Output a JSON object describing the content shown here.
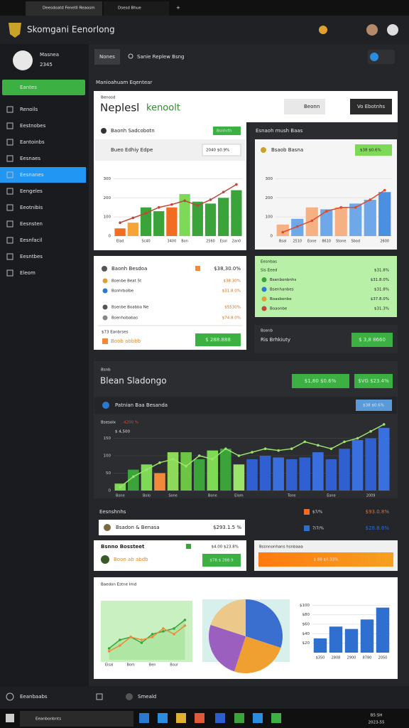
{
  "browser": {
    "tabs": [
      "Deesdoatd Fenetll Reaosm",
      "Dsesd Bhue"
    ]
  },
  "header": {
    "title": "Skomgani Eenorlong"
  },
  "sidebar": {
    "user_name": "Masnea",
    "user_id": "2345",
    "primary": "Eantes",
    "items": [
      "Renoils",
      "Eestnobes",
      "Eantoinbs",
      "Eesnaes",
      "Eesnanes",
      "Eengeles",
      "Eeotnibis",
      "Eesnsten",
      "Eesnfacil",
      "Eesntbes",
      "Eleom"
    ],
    "footer": "Eeanbaabs"
  },
  "toolbar": {
    "button": "Nones",
    "search": "Sanie Replew Bsng"
  },
  "section_title": "Manioahuam Eqentear",
  "report": {
    "label": "Benosd",
    "title": "Neplesl",
    "accent": "kenoolt",
    "buttons": [
      "Beonn",
      "Vo Ebotnhs"
    ]
  },
  "card_a": {
    "title": "Baonh Sadcobotn",
    "button": "Bsnhrth",
    "subtitle": "Bueo Edhiy Edpe",
    "badge": "2040 $0.9%"
  },
  "panel_b": {
    "header": "Esnaoh mush Baas",
    "title": "Bsaob Basna",
    "button": "$38 $0.6%"
  },
  "card_list": {
    "header_label": "Baonh Besdoa",
    "header_value": "$38,30.0%",
    "rows": [
      {
        "label": "Bsenbe Beat 5t",
        "value": "$38.30%"
      },
      {
        "label": "Bsnhrbolbe",
        "value": "$31.8.0%"
      },
      {
        "label": "Bsenbe Boabba Ne",
        "value": "$5530%"
      },
      {
        "label": "Bsenhobabas",
        "value": "$74.8.0%"
      }
    ],
    "footer_label": "$73 Eanbrses",
    "footer_sub": "Boob abbbb",
    "button": "$ 288.888"
  },
  "card_green": {
    "header": "Eesnbas",
    "rows": [
      {
        "label": "Sis Eeed",
        "value": "$31.8%"
      },
      {
        "label": "Bsenbonbnhs",
        "value": "$31.8.0%"
      },
      {
        "label": "Bsenhanbes",
        "value": "$31.8%"
      },
      {
        "label": "Boasbonbe",
        "value": "$37.8.0%"
      },
      {
        "label": "Boaonbe",
        "value": "$31.3%"
      }
    ]
  },
  "card_dark": {
    "label": "Bsenb",
    "title": "Ris Brhkiuty",
    "button": "$ 3,8 8660"
  },
  "panel_c": {
    "label": "Bsnb",
    "title": "Blean Sladongo",
    "buttons": [
      "$1,80 $0.6%",
      "$VG $23.4%"
    ],
    "subtitle": "Patnian Baa Besanda",
    "sub_button": "$38 $0.6%",
    "note": "Bsesolx",
    "note_accent": "4200 %",
    "note_value": "$ 4,500"
  },
  "legend": {
    "title": "Eesnshnhs",
    "rows": [
      {
        "color": "#f06d22",
        "label": "$7/%",
        "value": "$93.0.8%"
      },
      {
        "color": "#2f6fd0",
        "label": "7/7/%",
        "value": "$28.8.8%"
      }
    ]
  },
  "summary": {
    "label": "Bsadon & Benasa",
    "value": "$293.1.5 %"
  },
  "card_bottom": {
    "title": "Bsnno Bossteet",
    "value": "$4.00 $23.8%",
    "sub": "Boon ab abdb",
    "button": "$78.$ 288.9"
  },
  "card_orange": {
    "label": "Bssnnonhans hsnbaaa",
    "bar": "$ 88 $0.33%"
  },
  "panel_d": {
    "title": "Baedon Estne Imd"
  },
  "footer": {
    "label": "Smeald"
  },
  "taskbar": {
    "search": "Eeanbonbnts",
    "time": "B5:SH",
    "date": "2023-55"
  },
  "chart_data": [
    {
      "type": "bar",
      "ylim": [
        0,
        350
      ],
      "yticks": [
        0,
        100,
        200,
        300
      ],
      "categories": [
        "Elad",
        null,
        "Sc40",
        null,
        "3400",
        "Bon",
        null,
        "2560",
        "Esol",
        "2an0"
      ],
      "bars": {
        "colors": [
          "#f06d22",
          "#f5a33a",
          "#3aa43a",
          "#3aa43a",
          "#f06d22",
          "#7ed957",
          "#3aa43a",
          "#3aa43a",
          "#3aa43a",
          "#3aa43a"
        ],
        "values": [
          40,
          70,
          150,
          130,
          150,
          220,
          180,
          170,
          200,
          240
        ]
      },
      "line": {
        "color": "#c0453a",
        "values": [
          70,
          95,
          120,
          150,
          165,
          185,
          160,
          190,
          230,
          270
        ]
      }
    },
    {
      "type": "bar",
      "ylim": [
        0,
        350
      ],
      "yticks": [
        0,
        100,
        200,
        300
      ],
      "categories": [
        "Bsal",
        "2510",
        "Eone",
        "8610",
        "Stone",
        "Sbod",
        null,
        "2600"
      ],
      "bars": {
        "colors": [
          "#f5b183",
          "#6fa8e8",
          "#f5b183",
          "#6fa8e8",
          "#f5b183",
          "#6fa8e8",
          "#6fa8e8",
          "#4a8fe0"
        ],
        "values": [
          60,
          90,
          150,
          140,
          150,
          170,
          190,
          230
        ]
      },
      "line": {
        "color": "#e04a2a",
        "values": [
          20,
          50,
          80,
          130,
          150,
          150,
          190,
          240
        ]
      }
    },
    {
      "type": "bar",
      "ylim": [
        0,
        200
      ],
      "yticks": [
        0,
        50,
        100,
        150
      ],
      "categories": [
        "Bone",
        null,
        "Bolo",
        null,
        "Sone",
        null,
        null,
        "Bone",
        null,
        "Elom",
        null,
        null,
        null,
        "Tone",
        null,
        null,
        "Eone",
        null,
        null,
        "2009",
        null
      ],
      "bars": {
        "colors": [
          "#7ed957",
          "#3aa43a",
          "#7ed957",
          "#f08a3a",
          "#8fd95a",
          "#6cc644",
          "#3aa43a",
          "#7ed957",
          "#3aa43a",
          "#9be36b",
          "#2f5fd0",
          "#2f5fd0",
          "#3a6fe0",
          "#2f5fd0",
          "#2f5fd0",
          "#3a6fe0",
          "#2f5fd0",
          "#2f5fd0",
          "#3a6fe0",
          "#2f5fd0",
          "#3a6fe0"
        ],
        "values": [
          20,
          60,
          75,
          50,
          110,
          110,
          90,
          115,
          120,
          75,
          90,
          100,
          95,
          90,
          95,
          110,
          90,
          120,
          145,
          150,
          180
        ]
      },
      "line": {
        "color": "#9be36b",
        "values": [
          10,
          40,
          60,
          80,
          90,
          70,
          100,
          90,
          120,
          100,
          110,
          120,
          115,
          120,
          140,
          130,
          120,
          140,
          150,
          170,
          190
        ]
      }
    },
    {
      "type": "line",
      "area": true,
      "ylim": [
        0,
        100
      ],
      "categories": [
        "Elsal",
        null,
        "Bom",
        null,
        "Ben",
        null,
        "Bour",
        null
      ],
      "series": [
        {
          "color": "#3aa43a",
          "values": [
            20,
            35,
            40,
            30,
            45,
            50,
            55,
            70
          ]
        },
        {
          "color": "#f08a3a",
          "values": [
            15,
            25,
            40,
            35,
            40,
            55,
            45,
            60
          ]
        }
      ]
    },
    {
      "type": "pie",
      "values": [
        30,
        25,
        25,
        20
      ],
      "colors": [
        "#3a6fd0",
        "#f0a030",
        "#9b5fc0",
        "#ecc98a"
      ]
    },
    {
      "type": "bar",
      "ylim": [
        0,
        120
      ],
      "yticks": [
        {
          "value": 20,
          "label": "$20"
        },
        {
          "value": 40,
          "label": "$40"
        },
        {
          "value": 60,
          "label": "$60"
        },
        {
          "value": 80,
          "label": "$80"
        },
        {
          "value": 100,
          "label": "$100"
        }
      ],
      "categories": [
        "$350",
        "2808",
        "2900",
        "8780",
        "2050"
      ],
      "bars": {
        "colors": [
          "#2f6fd0",
          "#2f6fd0",
          "#2f6fd0",
          "#2f6fd0",
          "#2f6fd0"
        ],
        "values": [
          30,
          55,
          50,
          70,
          95
        ]
      }
    }
  ]
}
